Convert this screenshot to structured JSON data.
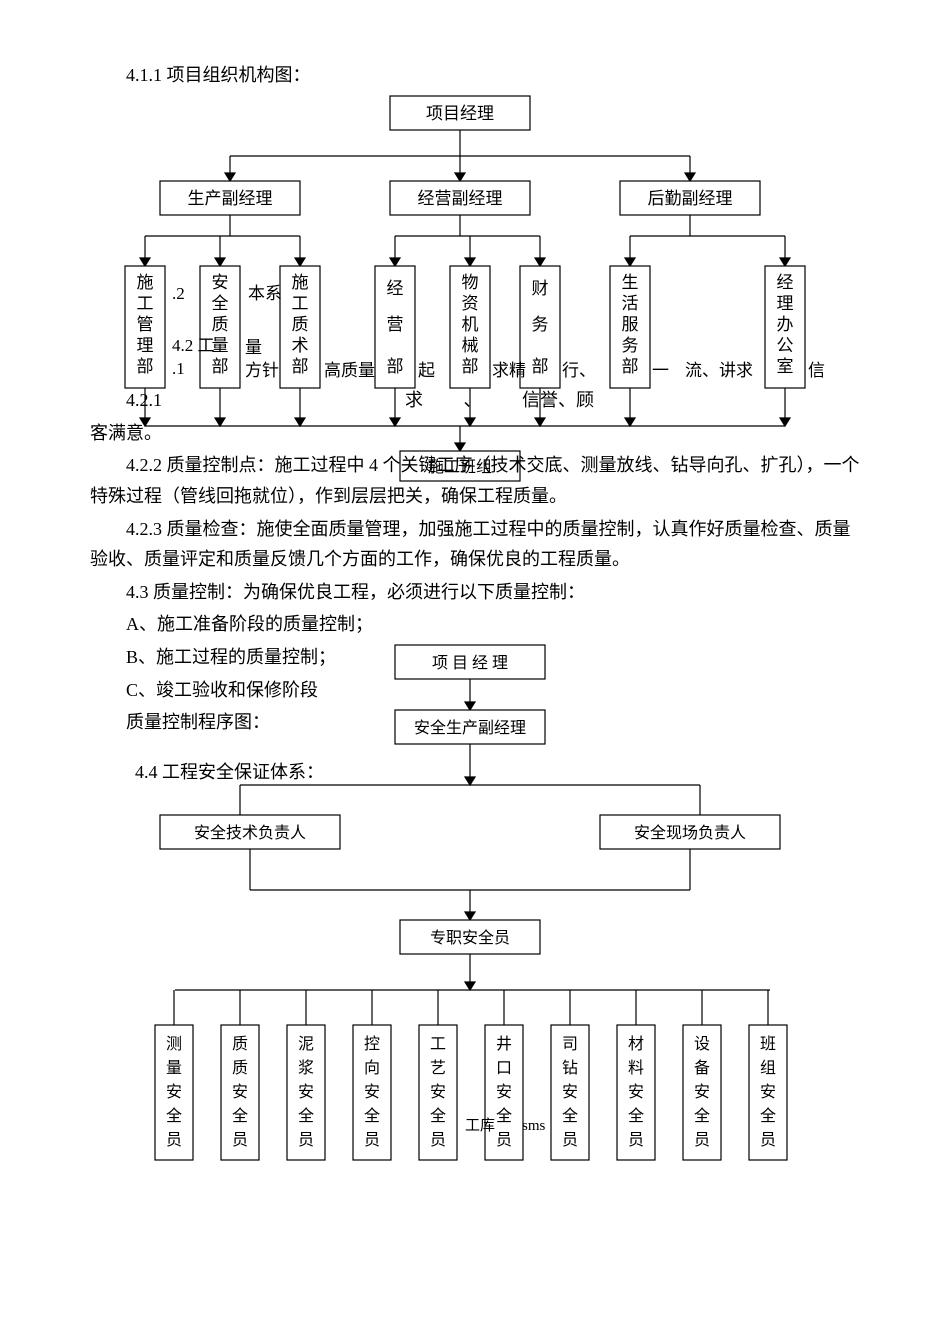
{
  "s411": {
    "title": "4.1.1 项目组织机构图："
  },
  "org": {
    "top": "项目经理",
    "vp": [
      "生产副经理",
      "经营副经理",
      "后勤副经理"
    ],
    "dept": [
      "施工管理部",
      "安全质量部",
      "施工质术部",
      "经营部",
      "物资机械部",
      "财务部",
      "生活服务部",
      "经理办公室"
    ],
    "bottom": "施工班组",
    "frag": {
      "f1": ".2 ",
      "f2": "本系",
      "f3": ".1",
      "f4": "量",
      "f5": "方针",
      "f6": "高质量",
      "f7": "起",
      "f8": "求精",
      "f9": "",
      "f10": "质",
      "f11": "流、讲求"
    }
  },
  "t42": {
    "label": "4.2 工",
    "label2": "质量体系"
  },
  "t421": {
    "text": "4.2.1 质量方针：从高质量做起，力求精益求精、质量一流、讲求信誉、顾客满意。"
  },
  "t422": {
    "text": "4.2.2 质量控制点：施工过程中 4 个关键工序（技术交底、测量放线、钻导向孔、扩孔），一个特殊过程（管线回拖就位），作到层层把关，确保工程质量。"
  },
  "t423": {
    "text": "4.2.3 质量检查：施使全面质量管理，加强施工过程中的质量控制，认真作好质量检查、质量验收、质量评定和质量反馈几个方面的工作，确保优良的工程质量。"
  },
  "t43": {
    "text": "4.3 质量控制：为确保优良工程，必须进行以下质量控制："
  },
  "optA": {
    "text": "A、施工准备阶段的质量控制；"
  },
  "optB": {
    "text": "B、施工过程的质量控制；"
  },
  "optC": {
    "text": "C、竣工验收和保修阶段"
  },
  "qcp": {
    "text": "质量控制程序图："
  },
  "safety": {
    "title": "4.4 工程安全保证体系：",
    "pm": "项 目 经 理",
    "vp": "安全生产副经理",
    "left": "安全技术负责人",
    "right": "安全现场负责人",
    "spec": "专职安全员",
    "roles": [
      "测量安全员",
      "质质安全员",
      "泥浆安全员",
      "控向安全员",
      "工艺安全员",
      "井口安全员",
      "司钻安全员",
      "材料安全员",
      "设备安全员",
      "班组安全员"
    ],
    "frag": {
      "f1": "工库",
      "f2": "sms"
    }
  },
  "colors": {
    "line": "#000",
    "box_fill": "#fff"
  }
}
